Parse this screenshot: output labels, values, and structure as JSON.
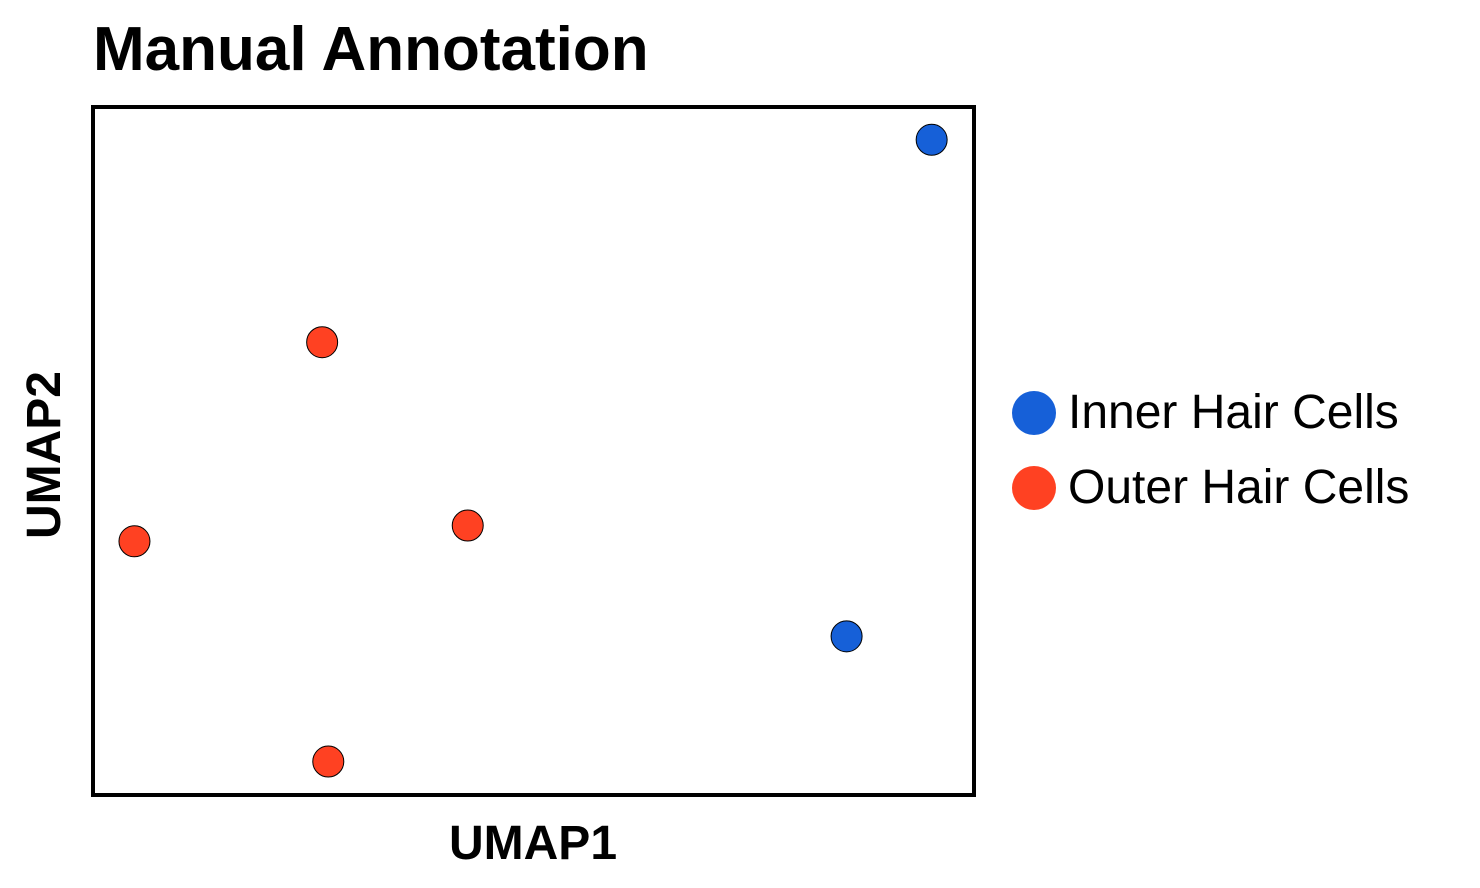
{
  "chart_data": {
    "type": "scatter",
    "title": "Manual Annotation",
    "xlabel": "UMAP1",
    "ylabel": "UMAP2",
    "xlim": [
      0,
      100
    ],
    "ylim": [
      0,
      100
    ],
    "grid": false,
    "ticks": false,
    "legend_position": "right",
    "series": [
      {
        "name": "Inner Hair Cells",
        "color": "#1660d8",
        "points": [
          {
            "x": 95.4,
            "y": 95.5
          },
          {
            "x": 85.7,
            "y": 22.9
          }
        ]
      },
      {
        "name": "Outer Hair Cells",
        "color": "#ff4122",
        "points": [
          {
            "x": 25.9,
            "y": 65.9
          },
          {
            "x": 4.5,
            "y": 36.8
          },
          {
            "x": 42.5,
            "y": 39.1
          },
          {
            "x": 26.6,
            "y": 4.6
          }
        ]
      }
    ]
  }
}
